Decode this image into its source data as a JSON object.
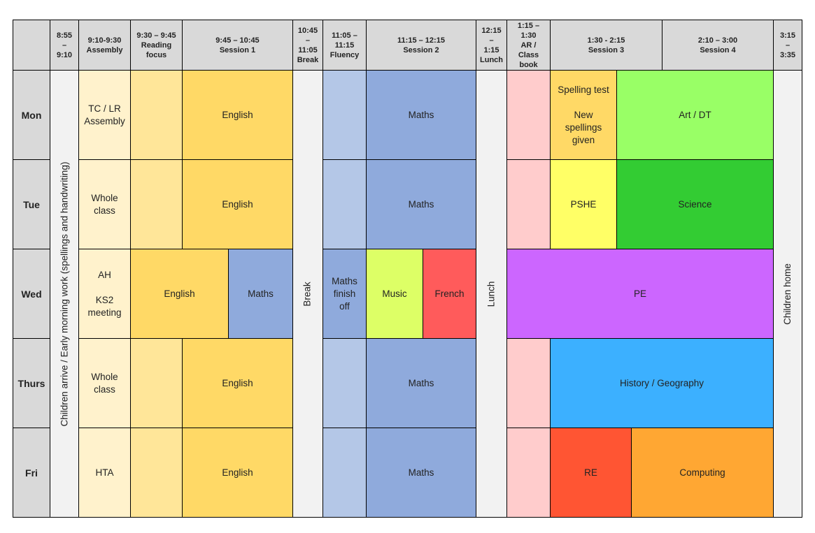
{
  "colors": {
    "header_gray": "#d9d9d9",
    "light_gray": "#f2f2f2",
    "assembly_cream": "#fff2cc",
    "reading_light_orange": "#ffe699",
    "english_orange": "#ffd966",
    "fluency_light_blue": "#b4c7e7",
    "maths_blue": "#8faadc",
    "ar_pink": "#ffcccc",
    "art_green": "#99ff66",
    "science_green": "#33cc33",
    "pshe_yellow": "#ffff66",
    "music_lime": "#ddff66",
    "french_red": "#ff5b5b",
    "pe_purple": "#cc66ff",
    "history_blue": "#3cb0ff",
    "re_red": "#ff5533",
    "computing_orange": "#ffa733"
  },
  "header": [
    "",
    "8:55\n–\n9:10",
    "9:10-9:30\nAssembly",
    "9:30 – 9:45\nReading\nfocus",
    "9:45 – 10:45\nSession 1",
    "10:45\n–\n11:05\nBreak",
    "11:05 –\n11:15\nFluency",
    "11:15 – 12:15\nSession 2",
    "12:15\n–\n1:15\nLunch",
    "1:15 –\n1:30\nAR /\nClass\nbook",
    "1:30 - 2:15\nSession 3",
    "2:10 – 3:00\nSession 4",
    "3:15\n–\n3:35"
  ],
  "days": [
    "Mon",
    "Tue",
    "Wed",
    "Thurs",
    "Fri"
  ],
  "verticals": {
    "early_morning": "Children arrive / Early morning work (spellings and handwriting)",
    "break": "Break",
    "lunch": "Lunch",
    "home": "Children home"
  },
  "mon": {
    "assembly": "TC / LR\nAssembly",
    "reading": "",
    "session1": "English",
    "fluency": "",
    "session2": "Maths",
    "ar": "",
    "session3": "Spelling test\n\nNew\nspellings\ngiven",
    "session4": "Art / DT"
  },
  "tue": {
    "assembly": "Whole\nclass",
    "reading": "",
    "session1": "English",
    "fluency": "",
    "session2": "Maths",
    "ar": "",
    "session3": "PSHE",
    "session4": "Science"
  },
  "wed": {
    "assembly": "AH\n\nKS2\nmeeting",
    "english": "English",
    "maths": "Maths",
    "maths_finish": "Maths\nfinish\noff",
    "music": "Music",
    "french": "French",
    "pe": "PE"
  },
  "thu": {
    "assembly": "Whole\nclass",
    "reading": "",
    "session1": "English",
    "fluency": "",
    "session2": "Maths",
    "ar": "",
    "afternoon": "History / Geography"
  },
  "fri": {
    "assembly": "HTA",
    "reading": "",
    "session1": "English",
    "fluency": "",
    "session2": "Maths",
    "ar": "",
    "session3": "RE",
    "session4": "Computing"
  }
}
